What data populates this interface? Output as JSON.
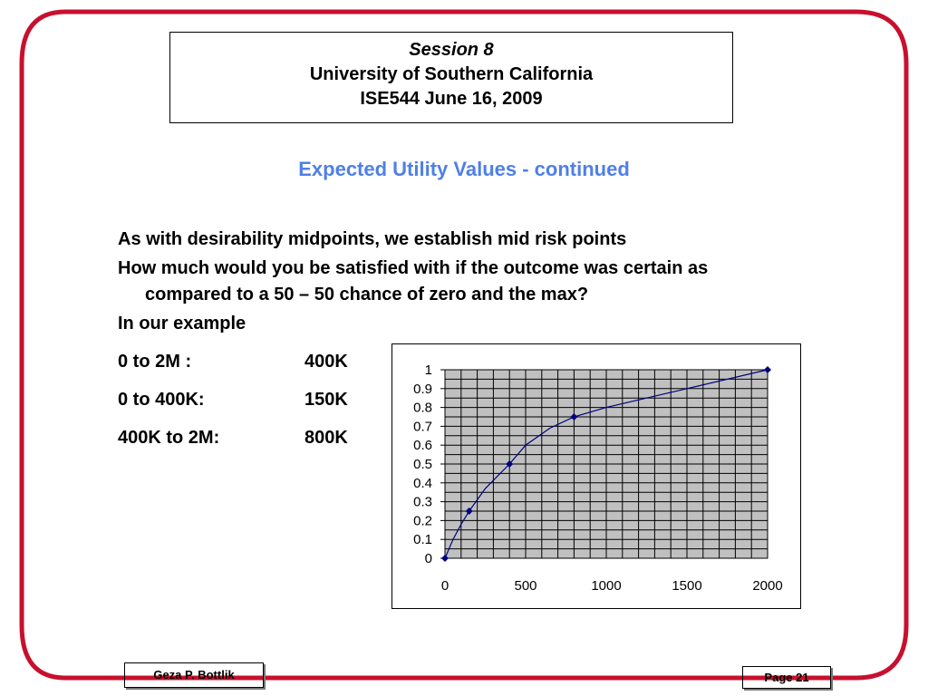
{
  "header": {
    "session": "Session 8",
    "university": "University of Southern California",
    "course": "ISE544 June 16, 2009"
  },
  "slide_title": "Expected Utility Values - continued",
  "body": {
    "p1": "As with desirability midpoints, we establish mid risk points",
    "p2": "How much would you be satisfied with if the outcome was certain as compared to a 50 – 50 chance of zero and the max?",
    "p3": "In our example",
    "rows": [
      {
        "label": "0 to 2M :",
        "value": "400K"
      },
      {
        "label": "0 to 400K:",
        "value": "150K"
      },
      {
        "label": "400K to 2M:",
        "value": "800K"
      }
    ]
  },
  "footer": {
    "author": "Geza P. Bottlik",
    "page": "Page 21"
  },
  "colors": {
    "frame": "#c8102e",
    "title": "#4f7fe8",
    "plot_bg": "#c0c0c0",
    "series": "#000080"
  },
  "chart_data": {
    "type": "scatter",
    "title": "",
    "xlabel": "",
    "ylabel": "",
    "xlim": [
      0,
      2000
    ],
    "ylim": [
      0,
      1
    ],
    "x_ticks": [
      "0",
      "500",
      "1000",
      "1500",
      "2000"
    ],
    "y_ticks": [
      "0",
      "0.1",
      "0.2",
      "0.3",
      "0.4",
      "0.5",
      "0.6",
      "0.7",
      "0.8",
      "0.9",
      "1"
    ],
    "grid": true,
    "legend": "none",
    "points": [
      {
        "x": 0,
        "y": 0
      },
      {
        "x": 150,
        "y": 0.25
      },
      {
        "x": 400,
        "y": 0.5
      },
      {
        "x": 800,
        "y": 0.75
      },
      {
        "x": 2000,
        "y": 1
      }
    ],
    "smooth_curve": [
      {
        "x": 0,
        "y": 0
      },
      {
        "x": 50,
        "y": 0.1
      },
      {
        "x": 100,
        "y": 0.18
      },
      {
        "x": 150,
        "y": 0.25
      },
      {
        "x": 250,
        "y": 0.37
      },
      {
        "x": 400,
        "y": 0.5
      },
      {
        "x": 500,
        "y": 0.6
      },
      {
        "x": 650,
        "y": 0.69
      },
      {
        "x": 800,
        "y": 0.75
      },
      {
        "x": 1000,
        "y": 0.8
      },
      {
        "x": 1500,
        "y": 0.9
      },
      {
        "x": 2000,
        "y": 1
      }
    ]
  }
}
